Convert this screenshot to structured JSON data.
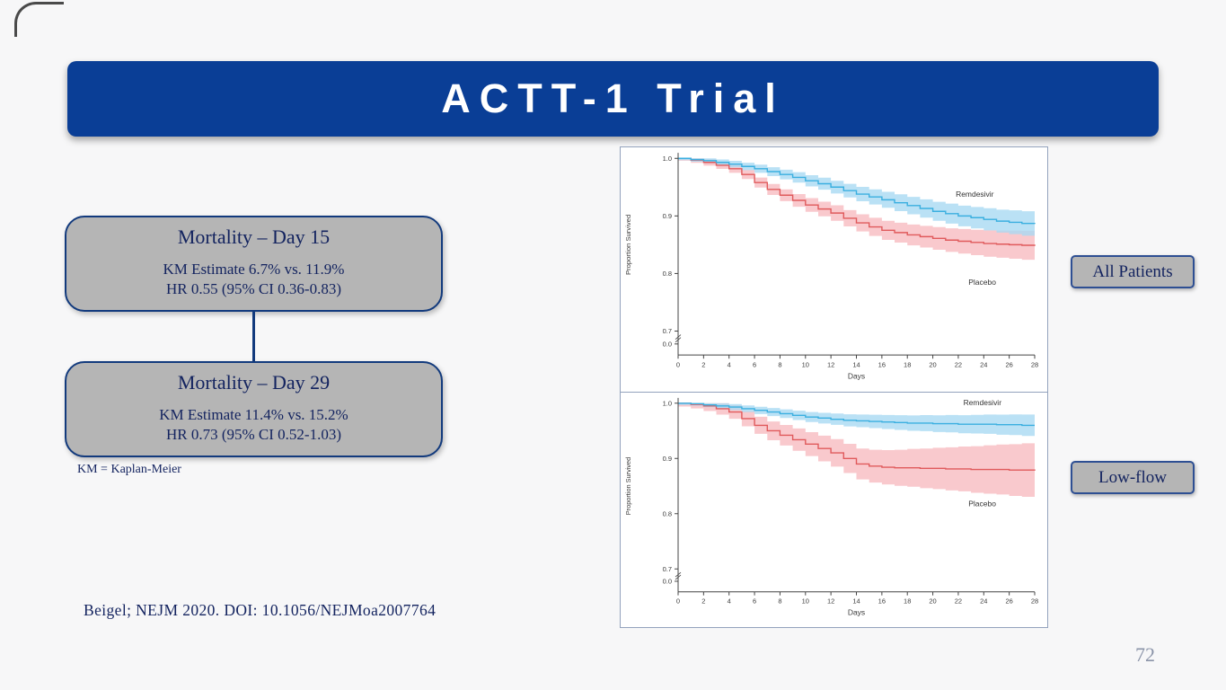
{
  "slide": {
    "title": "ACTT-1 Trial",
    "footnote": "KM = Kaplan-Meier",
    "citation": "Beigel; NEJM 2020. DOI: 10.1056/NEJMoa2007764",
    "page_number": "72"
  },
  "boxes": [
    {
      "title": "Mortality – Day 15",
      "line1": "KM Estimate 6.7% vs. 11.9%",
      "line2": "HR 0.55 (95% CI 0.36-0.83)"
    },
    {
      "title": "Mortality – Day 29",
      "line1": "KM Estimate 11.4% vs. 15.2%",
      "line2": "HR 0.73 (95% CI 0.52-1.03)"
    }
  ],
  "side_labels": [
    {
      "label": "All Patients"
    },
    {
      "label": "Low-flow"
    }
  ],
  "colors": {
    "header_bg": "#0a3e96",
    "navy_text": "#13235f",
    "box_bg": "#b5b5b5",
    "remdesivir_line": "#3aafe0",
    "remdesivir_band": "#a9d9f2",
    "placebo_line": "#e05a5c",
    "placebo_band": "#f8bcc1"
  },
  "chart_data": [
    {
      "type": "line",
      "subtype": "kaplan-meier-step",
      "title": "All Patients",
      "xlabel": "Days",
      "ylabel": "Proportion Survived",
      "x_ticks": [
        0,
        2,
        4,
        6,
        8,
        10,
        12,
        14,
        16,
        18,
        20,
        22,
        24,
        26,
        28
      ],
      "y_ticks_linear": [
        1.0,
        0.9,
        0.8,
        0.7
      ],
      "y_tick_zero": "0.0",
      "y_axis_break": true,
      "ylim_linear": [
        0.7,
        1.0
      ],
      "days": [
        0,
        1,
        2,
        3,
        4,
        5,
        6,
        7,
        8,
        9,
        10,
        11,
        12,
        13,
        14,
        15,
        16,
        17,
        18,
        19,
        20,
        21,
        22,
        23,
        24,
        25,
        26,
        27,
        28
      ],
      "series": [
        {
          "name": "Placebo",
          "line_color": "#e05a5c",
          "band_color": "#f8bcc1",
          "values": [
            1.0,
            0.997,
            0.993,
            0.988,
            0.982,
            0.972,
            0.958,
            0.946,
            0.936,
            0.927,
            0.919,
            0.912,
            0.905,
            0.896,
            0.888,
            0.881,
            0.875,
            0.871,
            0.867,
            0.864,
            0.861,
            0.858,
            0.856,
            0.854,
            0.852,
            0.851,
            0.85,
            0.849,
            0.848
          ],
          "band_halfwidth_start": 0.004,
          "band_halfwidth_end": 0.026,
          "label_day": 22.8,
          "label_value": 0.78
        },
        {
          "name": "Remdesivir",
          "line_color": "#3aafe0",
          "band_color": "#a9d9f2",
          "values": [
            1.0,
            0.998,
            0.996,
            0.993,
            0.99,
            0.986,
            0.982,
            0.977,
            0.972,
            0.967,
            0.961,
            0.956,
            0.95,
            0.944,
            0.938,
            0.933,
            0.928,
            0.923,
            0.918,
            0.913,
            0.908,
            0.904,
            0.9,
            0.897,
            0.894,
            0.891,
            0.889,
            0.887,
            0.886
          ],
          "band_halfwidth_start": 0.003,
          "band_halfwidth_end": 0.022,
          "label_day": 21.8,
          "label_value": 0.933
        }
      ]
    },
    {
      "type": "line",
      "subtype": "kaplan-meier-step",
      "title": "Low-flow",
      "xlabel": "Days",
      "ylabel": "Proportion Survived",
      "x_ticks": [
        0,
        2,
        4,
        6,
        8,
        10,
        12,
        14,
        16,
        18,
        20,
        22,
        24,
        26,
        28
      ],
      "y_ticks_linear": [
        1.0,
        0.9,
        0.8,
        0.7
      ],
      "y_tick_zero": "0.0",
      "y_axis_break": true,
      "ylim_linear": [
        0.7,
        1.0
      ],
      "days": [
        0,
        1,
        2,
        3,
        4,
        5,
        6,
        7,
        8,
        9,
        10,
        11,
        12,
        13,
        14,
        15,
        16,
        17,
        18,
        19,
        20,
        21,
        22,
        23,
        24,
        25,
        26,
        27,
        28
      ],
      "series": [
        {
          "name": "Placebo",
          "line_color": "#e05a5c",
          "band_color": "#f8bcc1",
          "values": [
            1.0,
            0.998,
            0.995,
            0.99,
            0.984,
            0.972,
            0.96,
            0.95,
            0.942,
            0.934,
            0.926,
            0.918,
            0.91,
            0.9,
            0.89,
            0.886,
            0.884,
            0.883,
            0.883,
            0.882,
            0.882,
            0.881,
            0.881,
            0.88,
            0.88,
            0.88,
            0.879,
            0.879,
            0.878
          ],
          "band_halfwidth_start": 0.006,
          "band_halfwidth_end": 0.05,
          "label_day": 22.8,
          "label_value": 0.813
        },
        {
          "name": "Remdesivir",
          "line_color": "#3aafe0",
          "band_color": "#a9d9f2",
          "values": [
            1.0,
            0.999,
            0.997,
            0.995,
            0.993,
            0.99,
            0.987,
            0.984,
            0.981,
            0.978,
            0.975,
            0.973,
            0.971,
            0.969,
            0.968,
            0.967,
            0.966,
            0.965,
            0.964,
            0.964,
            0.963,
            0.963,
            0.962,
            0.962,
            0.962,
            0.961,
            0.961,
            0.96,
            0.96
          ],
          "band_halfwidth_start": 0.003,
          "band_halfwidth_end": 0.02,
          "label_day": 22.4,
          "label_value": 0.996
        }
      ]
    }
  ]
}
